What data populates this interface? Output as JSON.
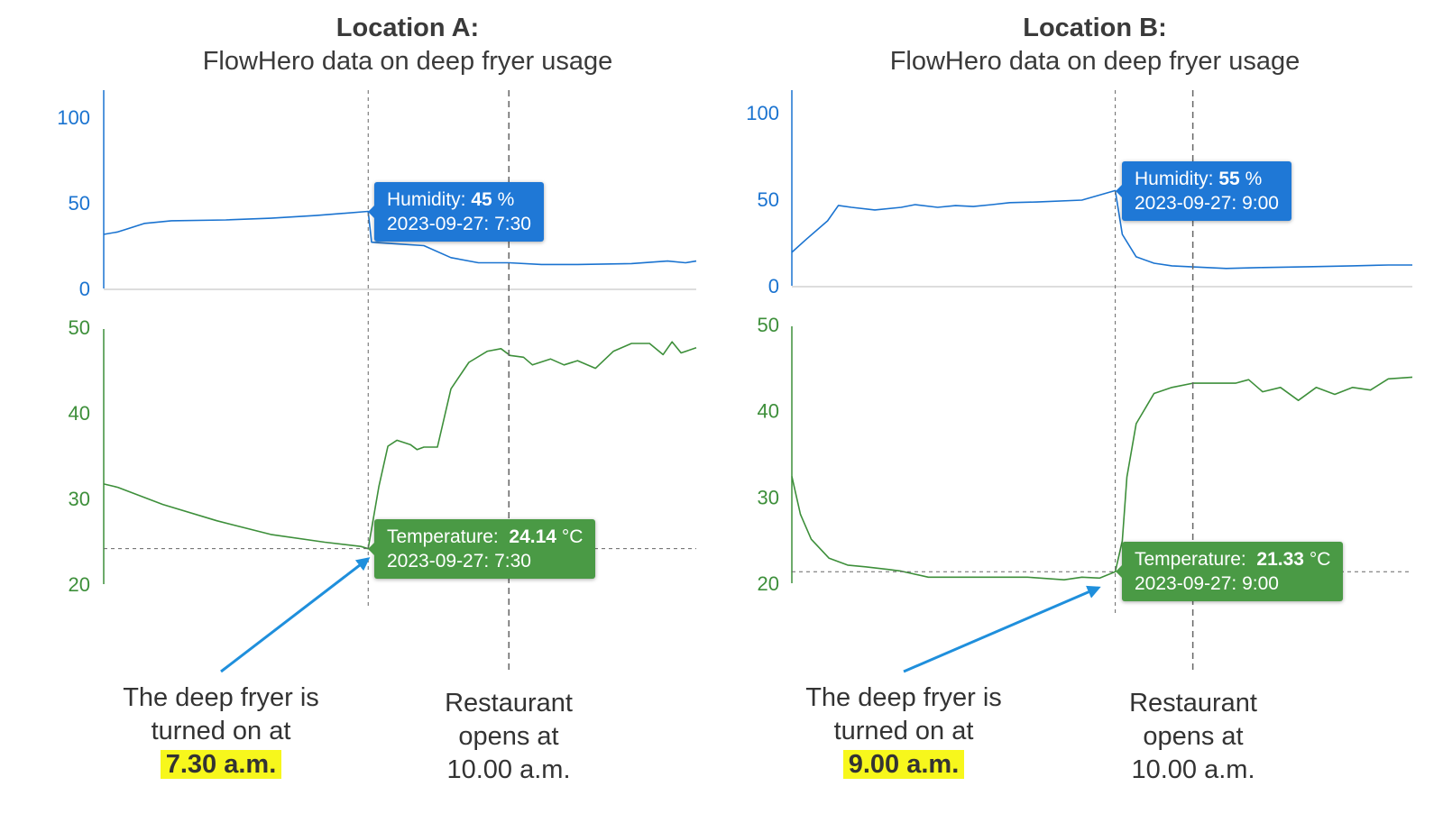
{
  "colors": {
    "humidity": "#1a73d0",
    "temperature": "#3d8f3a",
    "highlight": "#f7f71c",
    "arrow": "#1f8fdc",
    "guide": "#666666"
  },
  "chart_data": [
    {
      "type": "line",
      "title": "Location A:",
      "subtitle": "FlowHero data on deep fryer usage",
      "grid": false,
      "xlim": [
        2.8,
        13.33
      ],
      "marker_x": 7.5,
      "open_x": 10.0,
      "humidity": {
        "ylim": [
          0,
          100
        ],
        "yticks": [
          "0",
          "50",
          "100"
        ],
        "x": [
          2.8,
          3.05,
          3.53,
          4.0,
          4.97,
          5.77,
          6.57,
          7.5,
          7.56,
          8.01,
          8.49,
          8.97,
          9.46,
          10.0,
          10.58,
          11.22,
          12.18,
          12.82,
          13.14,
          13.33
        ],
        "y": [
          31.6,
          33,
          38,
          39.5,
          40,
          41,
          42.6,
          45,
          27,
          26,
          25,
          18,
          15,
          15,
          14,
          14,
          14.5,
          16,
          15,
          16
        ],
        "tooltip": {
          "label": "Humidity:",
          "value": "45",
          "unit": "%",
          "date": "2023-09-27: 7:30"
        }
      },
      "temperature": {
        "ylim": [
          20,
          50
        ],
        "yticks": [
          "20",
          "30",
          "40",
          "50"
        ],
        "x": [
          2.8,
          3.05,
          3.85,
          4.81,
          5.77,
          6.73,
          7.37,
          7.5,
          7.69,
          7.85,
          8.01,
          8.25,
          8.37,
          8.49,
          8.73,
          8.97,
          9.29,
          9.62,
          9.86,
          10.02,
          10.26,
          10.42,
          10.74,
          10.98,
          11.22,
          11.54,
          11.86,
          12.18,
          12.5,
          12.74,
          12.9,
          13.06,
          13.33
        ],
        "y": [
          31.7,
          31.3,
          29.3,
          27.4,
          25.8,
          24.9,
          24.4,
          24.14,
          31.4,
          36.1,
          36.8,
          36.3,
          35.7,
          36,
          36,
          42.8,
          45.9,
          47.2,
          47.5,
          46.7,
          46.5,
          45.6,
          46.3,
          45.6,
          46.1,
          45.2,
          47.2,
          48.1,
          48.1,
          46.8,
          48.3,
          47,
          47.6
        ],
        "tooltip": {
          "label": "Temperature:",
          "value": "24.14",
          "unit": "°C",
          "date": "2023-09-27: 7:30"
        }
      },
      "annotation_on": {
        "lines": [
          "The deep fryer is",
          "turned on at"
        ],
        "time": "7.30 a.m."
      },
      "annotation_open": {
        "lines": [
          "Restaurant",
          "opens at",
          "10.00 a.m."
        ]
      }
    },
    {
      "type": "line",
      "title": "Location B:",
      "subtitle": "FlowHero data on deep fryer usage",
      "grid": false,
      "xlim": [
        4.83,
        12.83
      ],
      "marker_x": 9.0,
      "open_x": 10.0,
      "humidity": {
        "ylim": [
          0,
          100
        ],
        "yticks": [
          "0",
          "50",
          "100"
        ],
        "x": [
          4.83,
          5.02,
          5.29,
          5.43,
          5.6,
          5.9,
          6.24,
          6.42,
          6.71,
          6.94,
          7.17,
          7.41,
          7.64,
          7.99,
          8.57,
          9.0,
          9.09,
          9.27,
          9.5,
          9.73,
          9.97,
          10.43,
          10.9,
          11.48,
          12.06,
          12.52,
          12.83
        ],
        "y": [
          19.3,
          27,
          37.5,
          46.4,
          45.3,
          43.8,
          45.3,
          46.9,
          45.3,
          46.3,
          45.8,
          46.9,
          48,
          48.4,
          49.5,
          55,
          29.7,
          16.7,
          13,
          11.5,
          11,
          10,
          10.5,
          11,
          11.5,
          12,
          12
        ],
        "tooltip": {
          "label": "Humidity:",
          "value": "55",
          "unit": "%",
          "date": "2023-09-27: 9:00"
        }
      },
      "temperature": {
        "ylim": [
          20,
          50
        ],
        "yticks": [
          "20",
          "30",
          "40",
          "50"
        ],
        "x": [
          4.83,
          4.94,
          5.08,
          5.31,
          5.55,
          5.78,
          6.07,
          6.24,
          6.59,
          6.94,
          7.41,
          7.87,
          8.34,
          8.57,
          8.8,
          9.0,
          9.09,
          9.15,
          9.27,
          9.5,
          9.73,
          10.0,
          10.2,
          10.55,
          10.72,
          10.9,
          11.13,
          11.36,
          11.59,
          11.83,
          12.06,
          12.29,
          12.52,
          12.83
        ],
        "y": [
          32.4,
          28,
          25.1,
          22.9,
          22.1,
          21.9,
          21.6,
          21.4,
          20.7,
          20.7,
          20.7,
          20.7,
          20.4,
          20.7,
          20.6,
          21.33,
          24.9,
          32.3,
          38.5,
          42,
          42.7,
          43.2,
          43.2,
          43.2,
          43.6,
          42.2,
          42.7,
          41.2,
          42.7,
          41.9,
          42.7,
          42.4,
          43.7,
          43.9
        ],
        "tooltip": {
          "label": "Temperature:",
          "value": "21.33",
          "unit": "°C",
          "date": "2023-09-27: 9:00"
        }
      },
      "annotation_on": {
        "lines": [
          "The deep fryer is",
          "turned on at"
        ],
        "time": "9.00 a.m."
      },
      "annotation_open": {
        "lines": [
          "Restaurant",
          "opens at",
          "10.00 a.m."
        ]
      }
    }
  ]
}
